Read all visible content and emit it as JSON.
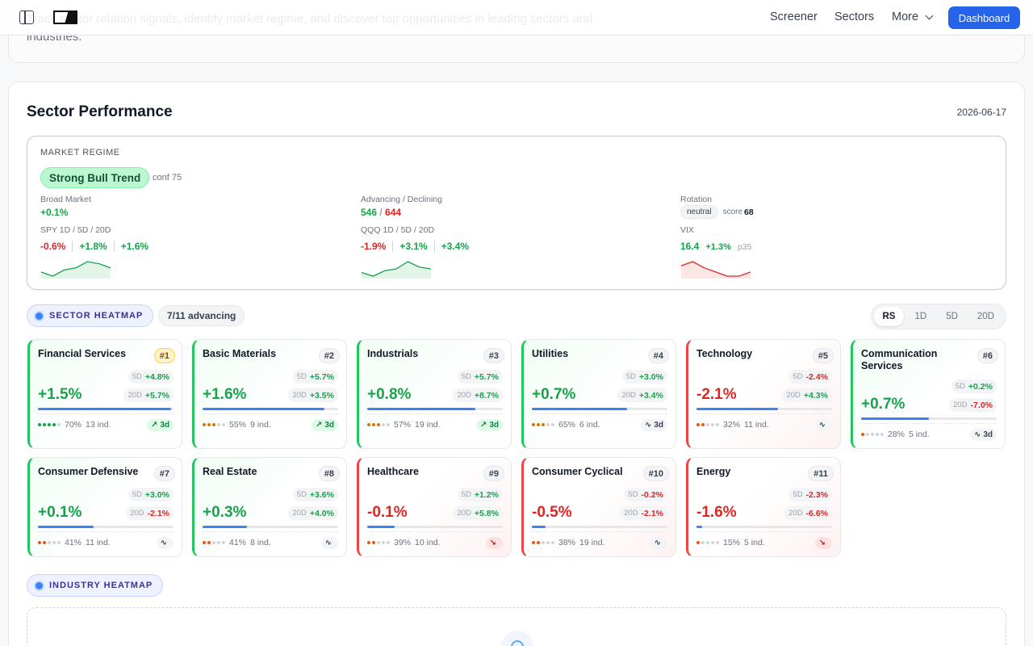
{
  "intro": {
    "text": "Track sector rotation signals, identify market regime, and discover top opportunities in leading sectors and industries."
  },
  "nav": {
    "screener": "Screener",
    "sectors": "Sectors",
    "more": "More",
    "dashboard": "Dashboard"
  },
  "section": {
    "title": "Sector Performance",
    "date": "2026-06-17"
  },
  "regime": {
    "label": "MARKET REGIME",
    "badge": "Strong Bull Trend",
    "conf": "conf 75",
    "broad": {
      "label": "Broad Market",
      "value": "+0.1%"
    },
    "adv_dec": {
      "label": "Advancing / Declining",
      "advancing": "546",
      "slash": " / ",
      "declining": "644"
    },
    "rotation": {
      "label": "Rotation",
      "state": "neutral",
      "score_label": "score",
      "score": "68"
    },
    "spy": {
      "label": "SPY 1D / 5D / 20D",
      "d1": "-0.6%",
      "d5": "+1.8%",
      "d20": "+1.6%",
      "spark": [
        3,
        1,
        4,
        5,
        8,
        7,
        5
      ]
    },
    "qqq": {
      "label": "QQQ 1D / 5D / 20D",
      "d1": "-1.9%",
      "d5": "+3.1%",
      "d20": "+3.4%",
      "spark": [
        3,
        1,
        4,
        5,
        9,
        6,
        5
      ]
    },
    "vix": {
      "label": "VIX",
      "value": "16.4",
      "change": "+1.3%",
      "pct": "p35",
      "spark": [
        7,
        9,
        6,
        4,
        2,
        2,
        4
      ]
    }
  },
  "sector_heatmap": {
    "title": "SECTOR HEATMAP",
    "advancing": "7/11 advancing",
    "tabs": [
      "RS",
      "1D",
      "5D",
      "20D"
    ],
    "active_tab": "RS"
  },
  "tiles": [
    {
      "name": "Financial Services",
      "rank": "#1",
      "d5": "+4.8%",
      "d20": "+5.7%",
      "change": "+1.5%",
      "rs": 0.98,
      "dots": 4,
      "breadth": "70%",
      "ind": "13 ind.",
      "trend": "up",
      "trend_label": "3d"
    },
    {
      "name": "Basic Materials",
      "rank": "#2",
      "d5": "+5.7%",
      "d20": "+3.5%",
      "change": "+1.6%",
      "rs": 0.9,
      "dots": 3,
      "breadth": "55%",
      "ind": "9 ind.",
      "trend": "up",
      "trend_label": "3d"
    },
    {
      "name": "Industrials",
      "rank": "#3",
      "d5": "+5.7%",
      "d20": "+8.7%",
      "change": "+0.8%",
      "rs": 0.8,
      "dots": 3,
      "breadth": "57%",
      "ind": "19 ind.",
      "trend": "up",
      "trend_label": "3d"
    },
    {
      "name": "Utilities",
      "rank": "#4",
      "d5": "+3.0%",
      "d20": "+3.4%",
      "change": "+0.7%",
      "rs": 0.7,
      "dots": 3,
      "breadth": "65%",
      "ind": "6 ind.",
      "trend": "flat",
      "trend_label": "3d"
    },
    {
      "name": "Technology",
      "rank": "#5",
      "d5": "-2.4%",
      "d20": "+4.3%",
      "change": "-2.1%",
      "rs": 0.6,
      "dots": 2,
      "breadth": "32%",
      "ind": "11 ind.",
      "trend": "flat",
      "trend_label": ""
    },
    {
      "name": "Communication Services",
      "rank": "#6",
      "d5": "+0.2%",
      "d20": "-7.0%",
      "change": "+0.7%",
      "rs": 0.5,
      "dots": 1,
      "breadth": "28%",
      "ind": "5 ind.",
      "trend": "flat",
      "trend_label": "3d"
    },
    {
      "name": "Consumer Defensive",
      "rank": "#7",
      "d5": "+3.0%",
      "d20": "-2.1%",
      "change": "+0.1%",
      "rs": 0.41,
      "dots": 2,
      "breadth": "41%",
      "ind": "11 ind.",
      "trend": "flat",
      "trend_label": ""
    },
    {
      "name": "Real Estate",
      "rank": "#8",
      "d5": "+3.6%",
      "d20": "+4.0%",
      "change": "+0.3%",
      "rs": 0.33,
      "dots": 2,
      "breadth": "41%",
      "ind": "8 ind.",
      "trend": "flat",
      "trend_label": ""
    },
    {
      "name": "Healthcare",
      "rank": "#9",
      "d5": "+1.2%",
      "d20": "+5.8%",
      "change": "-0.1%",
      "rs": 0.2,
      "dots": 2,
      "breadth": "39%",
      "ind": "10 ind.",
      "trend": "down",
      "trend_label": ""
    },
    {
      "name": "Consumer Cyclical",
      "rank": "#10",
      "d5": "-0.2%",
      "d20": "-2.1%",
      "change": "-0.5%",
      "rs": 0.1,
      "dots": 2,
      "breadth": "38%",
      "ind": "19 ind.",
      "trend": "flat",
      "trend_label": ""
    },
    {
      "name": "Energy",
      "rank": "#11",
      "d5": "-2.3%",
      "d20": "-6.6%",
      "change": "-1.6%",
      "rs": 0.04,
      "dots": 1,
      "breadth": "15%",
      "ind": "5 ind.",
      "trend": "down",
      "trend_label": ""
    }
  ],
  "industry_heatmap": {
    "title": "INDUSTRY HEATMAP"
  },
  "colors": {
    "positive": "#16a34a",
    "negative": "#dc2626",
    "accent": "#2563eb",
    "bar": "#3b82f6"
  },
  "icons": {
    "sidebar": "sidebar-toggle-icon",
    "logo": "brand-logo",
    "chevron": "chevron-down-icon",
    "trend_up": "trend-up-icon",
    "trend_flat": "activity-icon",
    "trend_down": "trend-down-icon"
  }
}
